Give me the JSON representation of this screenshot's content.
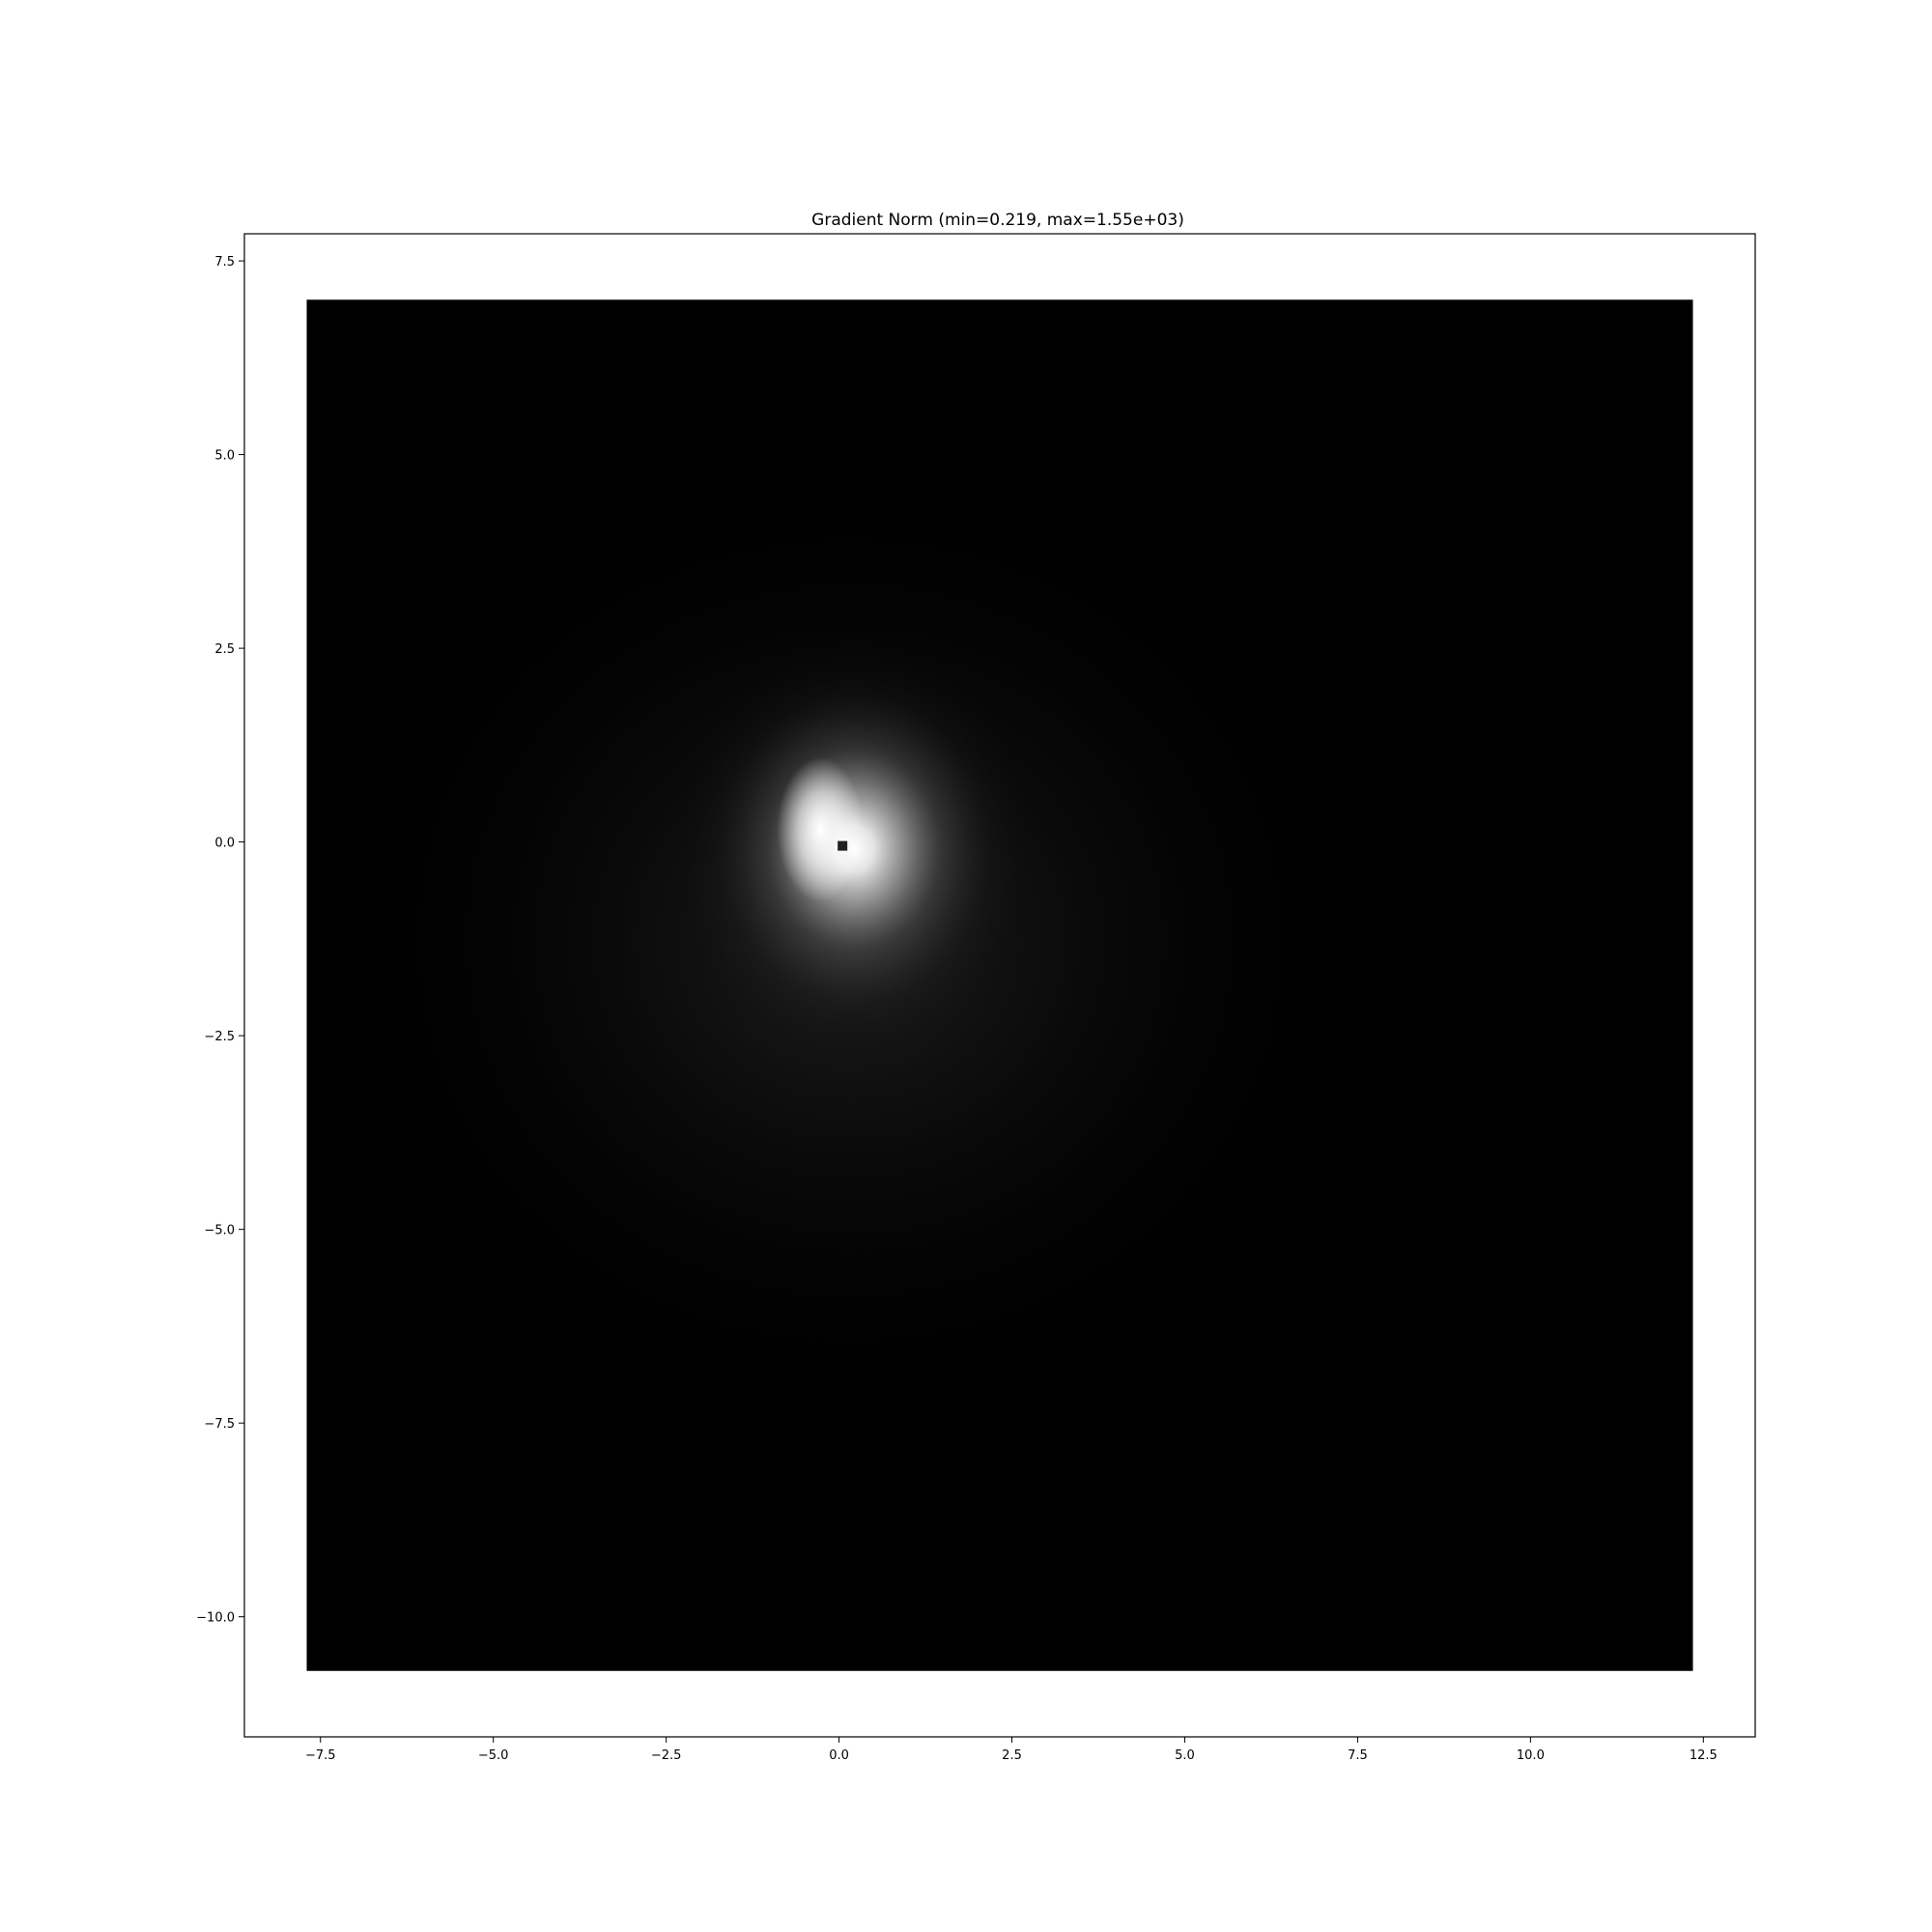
{
  "chart_data": {
    "type": "heatmap",
    "title": "Gradient Norm (min=0.219, max=1.55e+03)",
    "xlabel": "",
    "ylabel": "",
    "colormap": "gray",
    "xlim": [
      -8.6,
      13.25
    ],
    "ylim": [
      -11.55,
      7.85
    ],
    "data_extent": {
      "x": [
        -7.7,
        12.35
      ],
      "y": [
        -10.7,
        7.0
      ]
    },
    "xticks": [
      -7.5,
      -5.0,
      -2.5,
      0.0,
      2.5,
      5.0,
      7.5,
      10.0,
      12.5
    ],
    "xtick_labels": [
      "−7.5",
      "−5.0",
      "−2.5",
      "0.0",
      "2.5",
      "5.0",
      "7.5",
      "10.0",
      "12.5"
    ],
    "yticks": [
      7.5,
      5.0,
      2.5,
      0.0,
      -2.5,
      -5.0,
      -7.5,
      -10.0
    ],
    "ytick_labels": [
      "7.5",
      "5.0",
      "2.5",
      "0.0",
      "−2.5",
      "−5.0",
      "−7.5",
      "−10.0"
    ],
    "value_min": 0.219,
    "value_max": 1550,
    "peak_location": {
      "x": -0.2,
      "y": 0.1
    },
    "singularity_location": {
      "x": 0.05,
      "y": -0.05
    },
    "grid": false
  }
}
